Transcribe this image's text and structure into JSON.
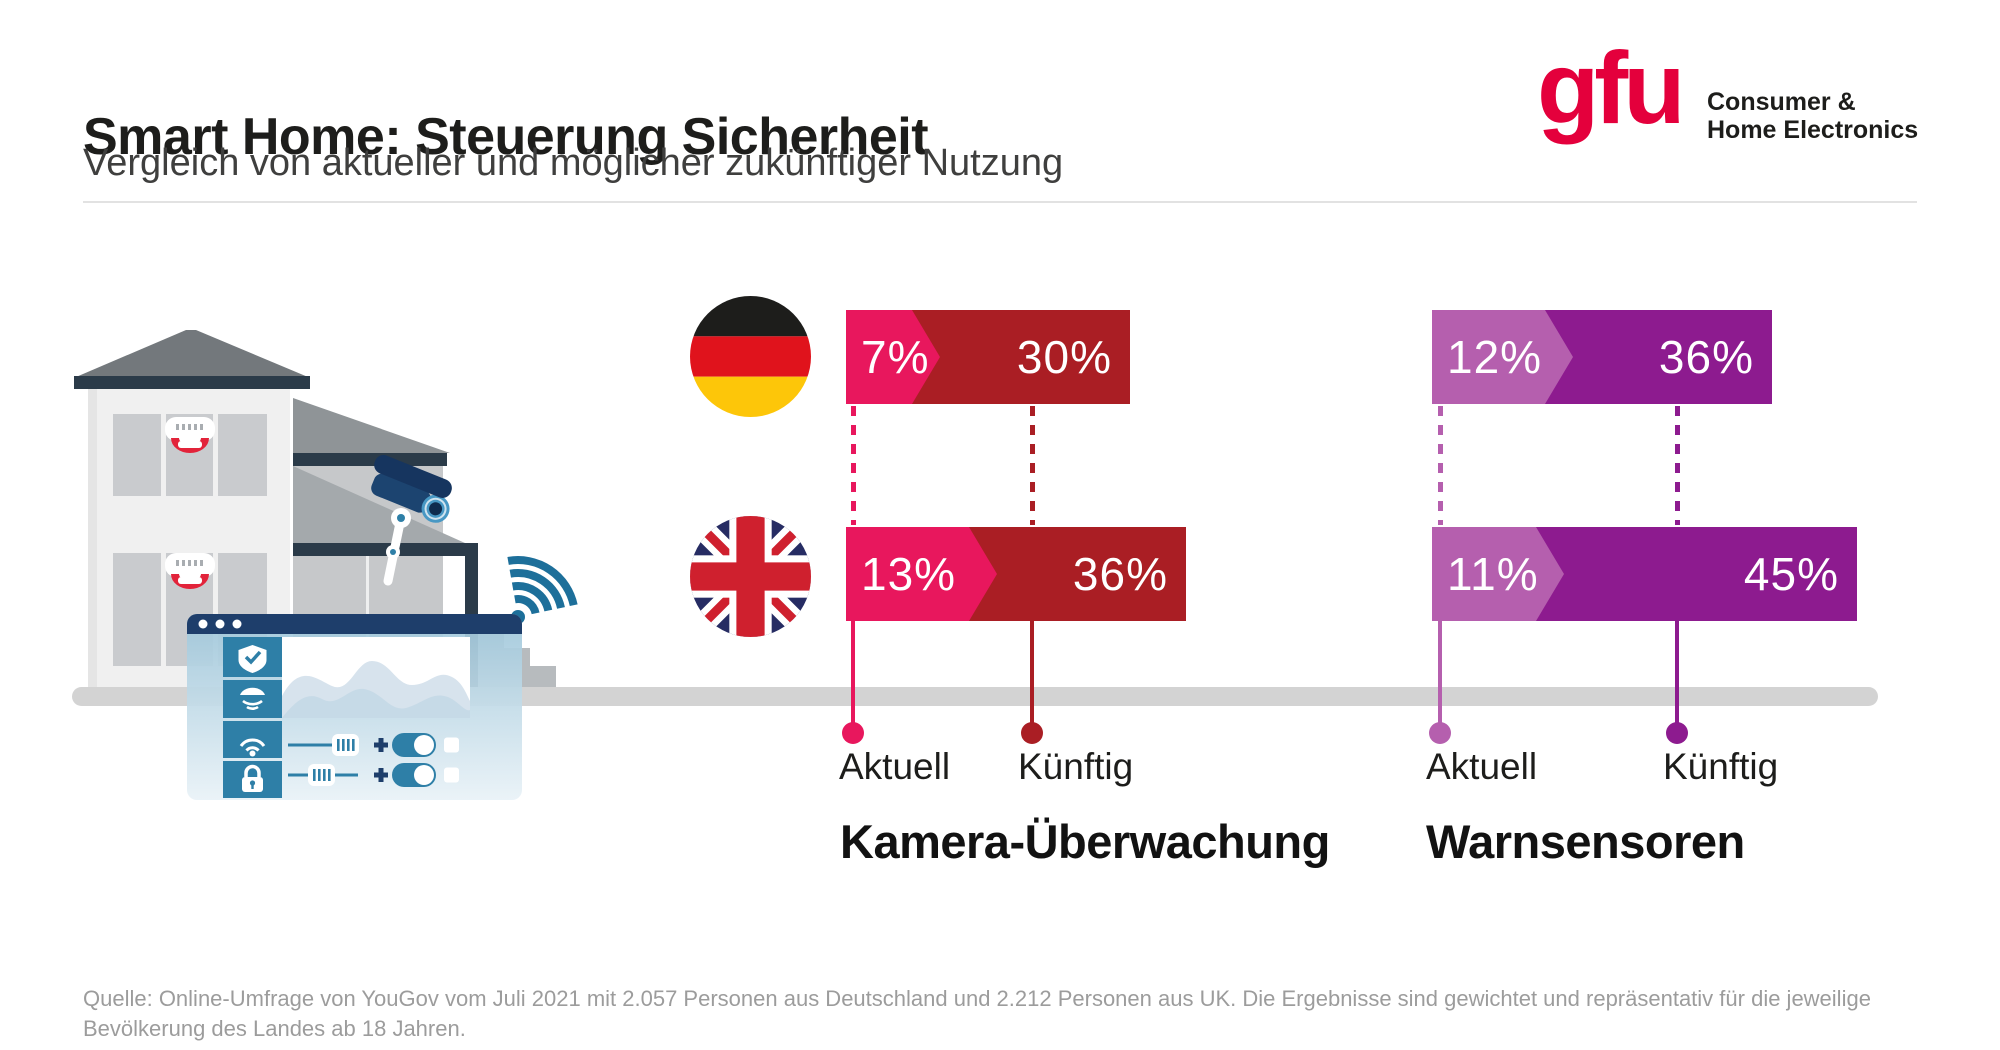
{
  "header": {
    "title": "Smart Home: Steuerung Sicherheit",
    "subtitle": "Vergleich von aktueller und möglicher zukünftiger Nutzung",
    "logo": {
      "brand": "gfu",
      "brand_color": "#e4003c",
      "tagline_line1": "Consumer &",
      "tagline_line2": "Home Electronics"
    }
  },
  "chart_data": {
    "type": "bar",
    "unit": "percent",
    "orientation": "horizontal",
    "countries": [
      {
        "id": "de",
        "name": "Deutschland",
        "flag": "germany-flag"
      },
      {
        "id": "uk",
        "name": "UK",
        "flag": "uk-flag"
      }
    ],
    "axis_labels": {
      "aktuell": "Aktuell",
      "kuenftig": "Künftig"
    },
    "groups": [
      {
        "category": "Kamera-Überwachung",
        "colors": {
          "aktuell": "#e8175d",
          "kuenftig": "#aa1e24"
        },
        "rows": [
          {
            "country": "de",
            "aktuell": 7,
            "kuenftig": 30,
            "aktuell_label": "7%",
            "kuenftig_label": "30%"
          },
          {
            "country": "uk",
            "aktuell": 13,
            "kuenftig": 36,
            "aktuell_label": "13%",
            "kuenftig_label": "36%"
          }
        ]
      },
      {
        "category": "Warnsensoren",
        "colors": {
          "aktuell": "#b55fae",
          "kuenftig": "#8d1b8f"
        },
        "rows": [
          {
            "country": "de",
            "aktuell": 12,
            "kuenftig": 36,
            "aktuell_label": "12%",
            "kuenftig_label": "36%"
          },
          {
            "country": "uk",
            "aktuell": 11,
            "kuenftig": 45,
            "aktuell_label": "11%",
            "kuenftig_label": "45%"
          }
        ]
      }
    ]
  },
  "illustration": {
    "name": "smart-home-security-house",
    "elements": [
      "house",
      "smoke-detector",
      "security-camera",
      "wifi-signal",
      "control-app-window"
    ]
  },
  "footer": {
    "source": "Quelle: Online-Umfrage von YouGov vom Juli 2021 mit 2.057 Personen aus Deutschland und 2.212 Personen aus UK. Die Ergebnisse sind gewichtet und repräsentativ für die jeweilige Bevölkerung des Landes ab 18 Jahren."
  }
}
